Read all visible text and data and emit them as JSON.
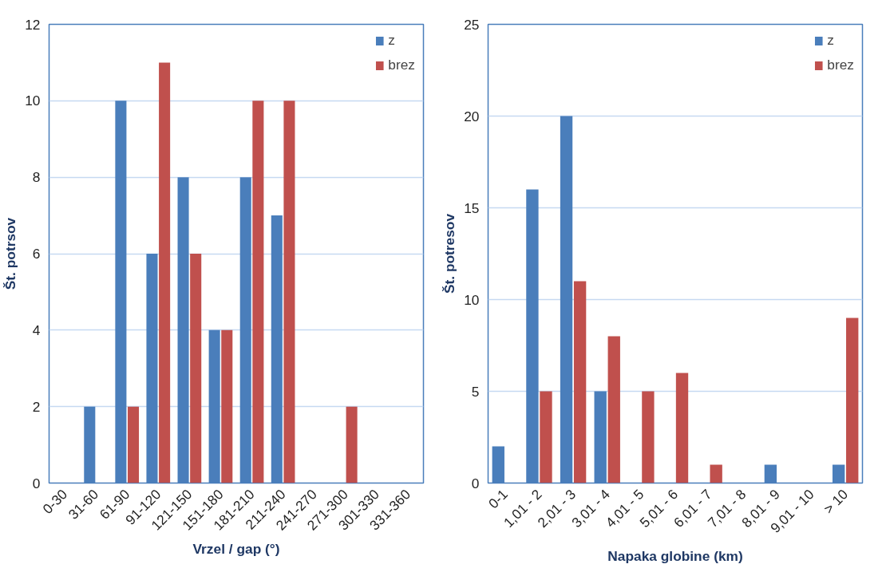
{
  "chart_data": [
    {
      "type": "bar",
      "xlabel": "Vrzel / gap (°)",
      "ylabel": "Št. potrsov",
      "categories": [
        "0-30",
        "31-60",
        "61-90",
        "91-120",
        "121-150",
        "151-180",
        "181-210",
        "211-240",
        "241-270",
        "271-300",
        "301-330",
        "331-360"
      ],
      "series": [
        {
          "name": "z",
          "color": "#4a7ebb",
          "values": [
            0,
            2,
            10,
            6,
            8,
            4,
            8,
            7,
            0,
            0,
            0,
            0
          ]
        },
        {
          "name": "brez",
          "color": "#c0504d",
          "values": [
            0,
            0,
            2,
            11,
            6,
            4,
            10,
            10,
            0,
            2,
            0,
            0
          ]
        }
      ],
      "ylim": [
        0,
        12
      ],
      "yticks": [
        0,
        2,
        4,
        6,
        8,
        10,
        12
      ],
      "grid": "y",
      "legend": "top right"
    },
    {
      "type": "bar",
      "xlabel": "Napaka globine (km)",
      "ylabel": "Št. potresov",
      "categories": [
        "0-1",
        "1,01 - 2",
        "2,01 - 3",
        "3,01 - 4",
        "4,01 - 5",
        "5,01 - 6",
        "6,01 - 7",
        "7,01 - 8",
        "8,01 - 9",
        "9,01 - 10",
        "> 10"
      ],
      "series": [
        {
          "name": "z",
          "color": "#4a7ebb",
          "values": [
            2,
            16,
            20,
            5,
            0,
            0,
            0,
            0,
            1,
            0,
            1
          ]
        },
        {
          "name": "brez",
          "color": "#c0504d",
          "values": [
            0,
            5,
            11,
            8,
            5,
            6,
            1,
            0,
            0,
            0,
            9
          ]
        }
      ],
      "ylim": [
        0,
        25
      ],
      "yticks": [
        0,
        5,
        10,
        15,
        20,
        25
      ],
      "grid": "y",
      "legend": "top right"
    }
  ]
}
